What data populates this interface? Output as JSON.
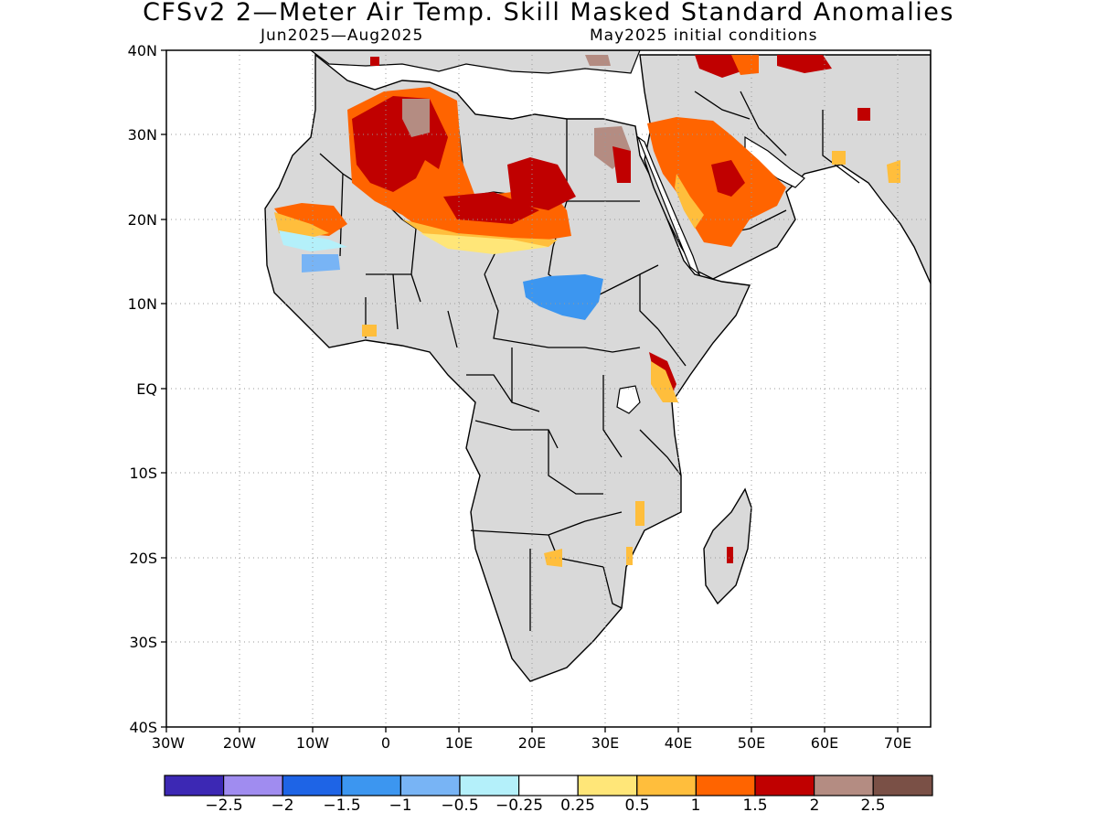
{
  "title": "CFSv2 2—Meter Air Temp. Skill Masked Standard Anomalies",
  "subtitle_left": "Jun2025—Aug2025",
  "subtitle_right": "May2025 initial conditions",
  "axes": {
    "lat_labels": [
      "40N",
      "30N",
      "20N",
      "10N",
      "EQ",
      "10S",
      "20S",
      "30S",
      "40S"
    ],
    "lon_labels": [
      "30W",
      "20W",
      "10W",
      "0",
      "10E",
      "20E",
      "30E",
      "40E",
      "50E",
      "60E",
      "70E"
    ]
  },
  "colorbar": {
    "colors": [
      "#3c28b4",
      "#a08cf0",
      "#1e64e6",
      "#3c96f0",
      "#78b4f5",
      "#b4f0fa",
      "#ffffff",
      "#ffe678",
      "#ffbe3c",
      "#ff6400",
      "#c00000",
      "#b48c82",
      "#7a5046"
    ],
    "labels": [
      "−2.5",
      "−2",
      "−1.5",
      "−1",
      "−0.5",
      "−0.25",
      "0.25",
      "0.5",
      "1",
      "1.5",
      "2",
      "2.5"
    ]
  },
  "colors": {
    "land": "#d9d9d9",
    "ocean": "#ffffff",
    "border": "#000000",
    "grid": "#999999"
  }
}
